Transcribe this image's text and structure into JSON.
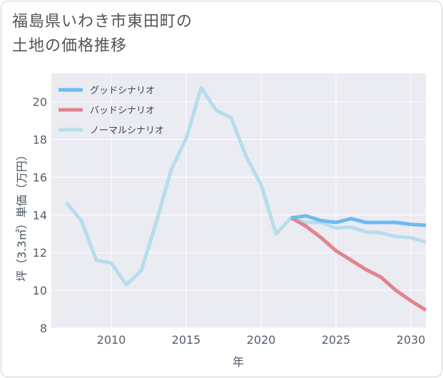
{
  "page": {
    "title_line1": "福島県いわき市東田町の",
    "title_line2": "土地の価格推移"
  },
  "chart_data": {
    "type": "line",
    "xlabel": "年",
    "ylabel": "坪（3.3㎡）単価（万円）",
    "xlim": [
      2006,
      2031
    ],
    "ylim": [
      8,
      21.5
    ],
    "xticks": [
      2010,
      2015,
      2020,
      2025,
      2030
    ],
    "yticks": [
      8,
      10,
      12,
      14,
      16,
      18,
      20
    ],
    "grid": true,
    "legend_position": "top-left",
    "series": [
      {
        "name": "グッドシナリオ",
        "color": "#6dbbef",
        "x": [
          2022,
          2023,
          2024,
          2025,
          2026,
          2027,
          2028,
          2029,
          2030,
          2031
        ],
        "y": [
          13.85,
          13.95,
          13.7,
          13.6,
          13.8,
          13.6,
          13.6,
          13.6,
          13.5,
          13.45
        ]
      },
      {
        "name": "バッドシナリオ",
        "color": "#e0848f",
        "x": [
          2022,
          2023,
          2024,
          2025,
          2026,
          2027,
          2028,
          2029,
          2030,
          2031
        ],
        "y": [
          13.85,
          13.4,
          12.8,
          12.1,
          11.6,
          11.1,
          10.7,
          10.0,
          9.45,
          8.95
        ]
      },
      {
        "name": "ノーマルシナリオ",
        "color": "#b8dcec",
        "x": [
          2007,
          2008,
          2009,
          2010,
          2011,
          2012,
          2013,
          2014,
          2015,
          2016,
          2017,
          2018,
          2019,
          2020,
          2021,
          2022,
          2023,
          2024,
          2025,
          2026,
          2027,
          2028,
          2029,
          2030,
          2031
        ],
        "y": [
          14.65,
          13.7,
          11.6,
          11.45,
          10.3,
          11.05,
          13.6,
          16.4,
          18.05,
          20.75,
          19.55,
          19.15,
          17.1,
          15.6,
          13.0,
          13.85,
          13.6,
          13.6,
          13.3,
          13.35,
          13.1,
          13.05,
          12.85,
          12.8,
          12.55
        ]
      }
    ]
  }
}
